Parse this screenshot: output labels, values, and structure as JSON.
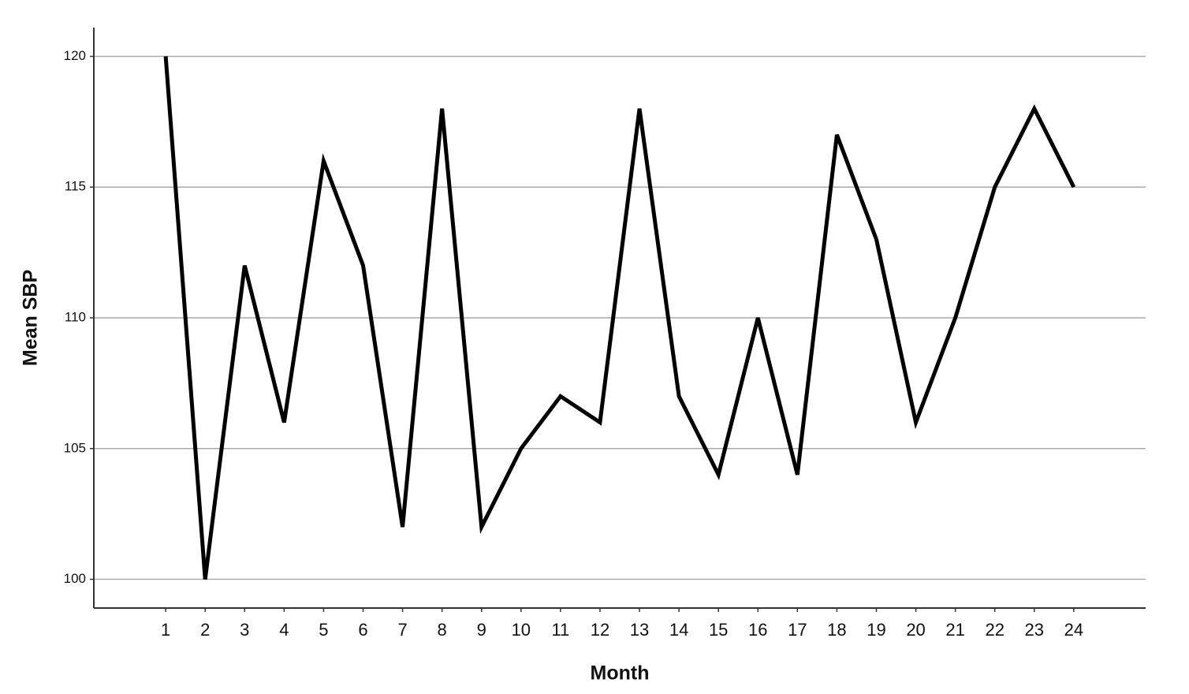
{
  "chart_data": {
    "type": "line",
    "x_label": "Month",
    "y_label": "Mean SBP",
    "x": [
      1,
      2,
      3,
      4,
      5,
      6,
      7,
      8,
      9,
      10,
      11,
      12,
      13,
      14,
      15,
      16,
      17,
      18,
      19,
      20,
      21,
      22,
      23,
      24
    ],
    "series": [
      {
        "color": "#000000",
        "values": [
          120,
          100,
          112,
          106,
          116,
          112,
          102,
          118,
          102,
          105,
          107,
          106,
          118,
          107,
          104,
          110,
          104,
          117,
          113,
          106,
          110,
          115,
          118,
          115
        ]
      }
    ],
    "xlim": [
      -0.82,
      25.82
    ],
    "xticks": [
      1,
      2,
      3,
      4,
      5,
      6,
      7,
      8,
      9,
      10,
      11,
      12,
      13,
      14,
      15,
      16,
      17,
      18,
      19,
      20,
      21,
      22,
      23,
      24
    ],
    "ylim": [
      98.9,
      121.1
    ],
    "yticks": [
      100,
      105,
      110,
      115,
      120
    ],
    "grid": true
  }
}
